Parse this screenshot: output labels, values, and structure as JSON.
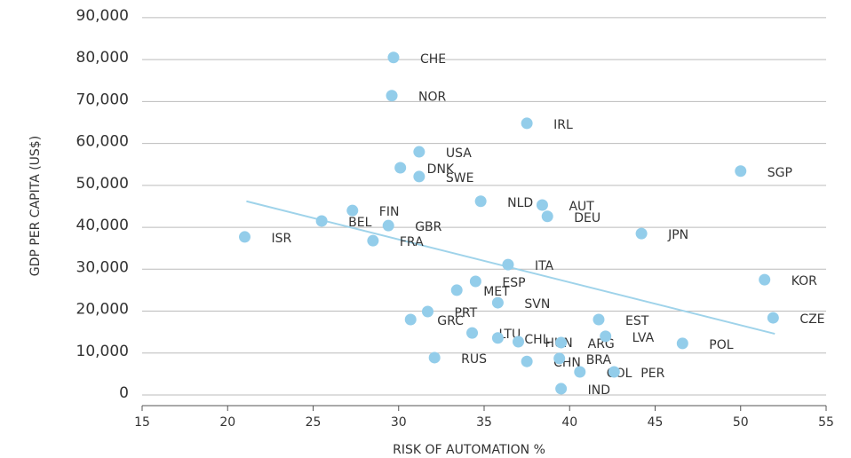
{
  "chart_data": {
    "type": "scatter",
    "xlabel": "RISK OF AUTOMATION %",
    "ylabel": "GDP PER CAPITA (US$)",
    "xlim": [
      15,
      55
    ],
    "xticks": [
      15,
      20,
      25,
      30,
      35,
      40,
      45,
      50,
      55
    ],
    "ylim": [
      0,
      94000
    ],
    "yticks": [
      0,
      {
        "value": 10000,
        "label": "10,000"
      },
      {
        "value": 20000,
        "label": "20,000"
      },
      {
        "value": 30000,
        "label": "30,000"
      },
      {
        "value": 40000,
        "label": "40,000"
      },
      {
        "value": 50000,
        "label": "50,000"
      },
      {
        "value": 60000,
        "label": "60,000"
      },
      {
        "value": 70000,
        "label": "70,000"
      },
      {
        "value": 80000,
        "label": "80,000"
      },
      {
        "value": 90000,
        "label": "90,000"
      }
    ],
    "grid": true,
    "color": "#93cdea",
    "labels": [
      "CHE",
      "NOR",
      "IRL",
      "USA",
      "DNK",
      "SWE",
      "SGP",
      "NLD",
      "AUT",
      "DEU",
      "FIN",
      "BEL",
      "GBR",
      "ISR",
      "FRA",
      "JPN",
      "ITA",
      "ESP",
      "MET",
      "KOR",
      "SVN",
      "PRT",
      "GRC",
      "EST",
      "CZE",
      "LTU",
      "CHL",
      "HUN",
      "ARG",
      "LVA",
      "POL",
      "RUS",
      "CHN",
      "BRA",
      "COL",
      "PER",
      "IND"
    ],
    "x": [
      29.7,
      29.6,
      37.5,
      31.2,
      30.1,
      31.2,
      50.0,
      34.8,
      38.4,
      38.7,
      27.3,
      25.5,
      29.4,
      21.0,
      28.5,
      44.2,
      36.4,
      34.5,
      33.4,
      51.4,
      35.8,
      31.7,
      30.7,
      41.7,
      51.9,
      34.3,
      35.8,
      37.0,
      39.5,
      42.1,
      46.6,
      32.1,
      37.5,
      39.4,
      40.6,
      42.6,
      39.5
    ],
    "values": [
      80500,
      71400,
      64800,
      58000,
      54200,
      52100,
      53400,
      46200,
      45300,
      42600,
      44000,
      41500,
      40400,
      37700,
      36800,
      38500,
      31100,
      27100,
      25000,
      27500,
      22000,
      19900,
      18000,
      18000,
      18400,
      14800,
      13600,
      12700,
      12500,
      14000,
      12300,
      8900,
      8000,
      8700,
      5500,
      5500,
      1500
    ],
    "trendline": {
      "color": "#9fd3ea",
      "x": [
        21.1,
        52.0
      ],
      "values": [
        46200,
        14600
      ]
    }
  }
}
